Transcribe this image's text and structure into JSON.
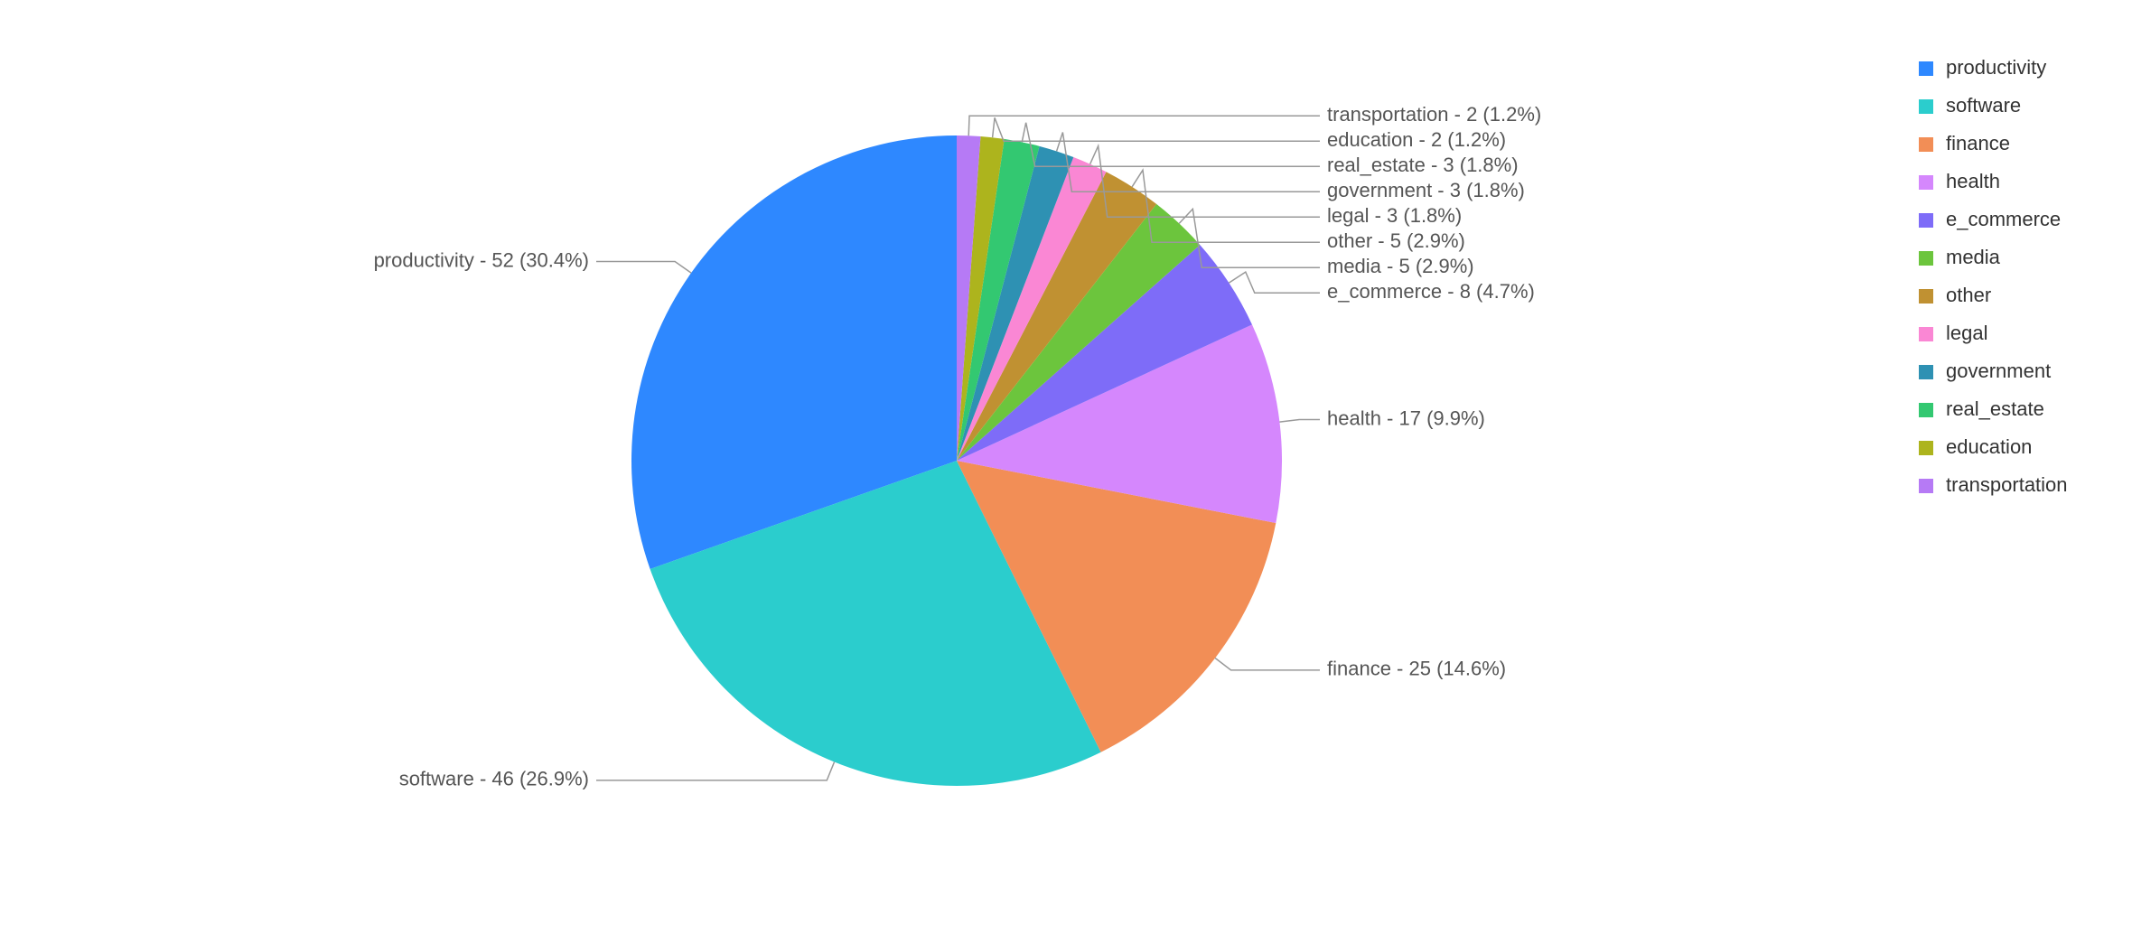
{
  "chart_data": {
    "type": "pie",
    "categories": [
      "productivity",
      "software",
      "finance",
      "health",
      "e_commerce",
      "media",
      "other",
      "legal",
      "government",
      "real_estate",
      "education",
      "transportation"
    ],
    "values": [
      52,
      46,
      25,
      17,
      8,
      5,
      5,
      3,
      3,
      3,
      2,
      2
    ],
    "value_labels": [
      "productivity - 52 (30.4%)",
      "software - 46 (26.9%)",
      "finance - 25 (14.6%)",
      "health - 17 (9.9%)",
      "e_commerce - 8 (4.7%)",
      "media - 5 (2.9%)",
      "other - 5 (2.9%)",
      "legal - 3 (1.8%)",
      "government - 3 (1.8%)",
      "real_estate - 3 (1.8%)",
      "education - 2 (1.2%)",
      "transportation - 2 (1.2%)"
    ],
    "colors": [
      "#2e88ff",
      "#2bcdcd",
      "#f28e56",
      "#d587fd",
      "#7e6cf8",
      "#6cc53d",
      "#c09132",
      "#fa87d4",
      "#2e91b3",
      "#33c871",
      "#adb41d",
      "#b67af5"
    ],
    "legend": "top-right"
  }
}
